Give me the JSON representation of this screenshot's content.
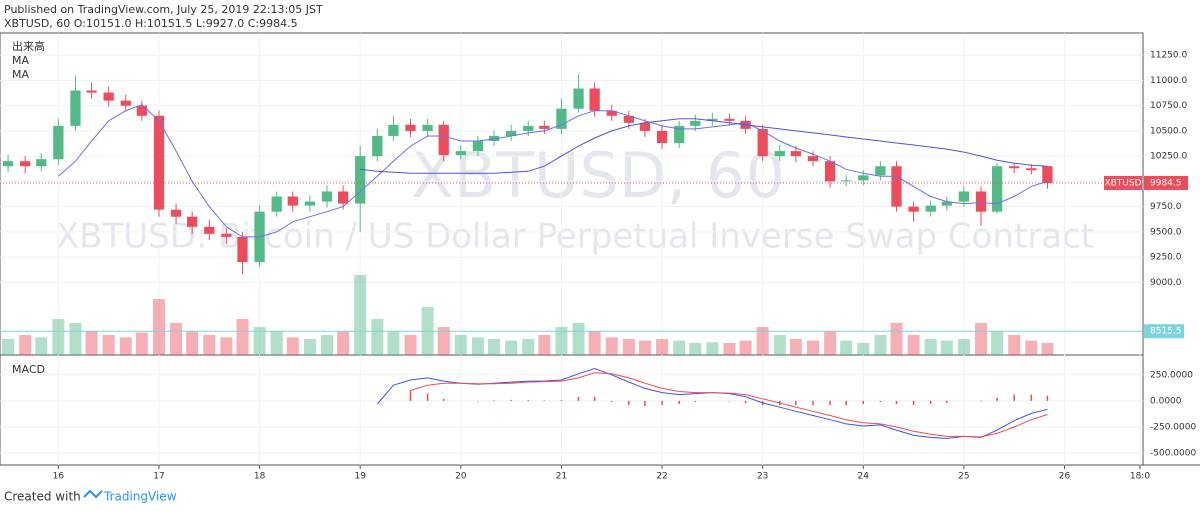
{
  "chart_data": {
    "type": "candlestick",
    "published": "Published on TradingView.com, July 25, 2019 22:13:05 JST",
    "header": "XBTUSD, 60 O:10151.0 H:10151.5 L:9927.0 C:9984.5",
    "watermark": "XBTUSD, 60",
    "watermark_desc": "XBTUSD: Bitcoin / US Dollar Perpetual Inverse Swap Contract",
    "legend": [
      "出来高",
      "MA",
      "MA"
    ],
    "symbol": "XBTUSD",
    "footer": "Created with",
    "brand": "TradingView",
    "up_color": "#53b987",
    "down_color": "#eb4d5c",
    "x": [
      15.5,
      15.67,
      15.83,
      16,
      16.17,
      16.33,
      16.5,
      16.67,
      16.83,
      17,
      17.17,
      17.33,
      17.5,
      17.67,
      17.83,
      18,
      18.17,
      18.33,
      18.5,
      18.67,
      18.83,
      19,
      19.17,
      19.33,
      19.5,
      19.67,
      19.83,
      20,
      20.17,
      20.33,
      20.5,
      20.67,
      20.83,
      21,
      21.17,
      21.33,
      21.5,
      21.67,
      21.83,
      22,
      22.17,
      22.33,
      22.5,
      22.67,
      22.83,
      23,
      23.17,
      23.33,
      23.5,
      23.67,
      23.83,
      24,
      24.17,
      24.33,
      24.5,
      24.67,
      24.83,
      25,
      25.17,
      25.33,
      25.5,
      25.67,
      25.83
    ],
    "open": [
      10150,
      10200,
      10150,
      10220,
      10550,
      10900,
      10880,
      10800,
      10750,
      10650,
      9720,
      9650,
      9550,
      9480,
      9450,
      9200,
      9700,
      9850,
      9760,
      9800,
      9900,
      9780,
      10250,
      10450,
      10560,
      10500,
      10560,
      10260,
      10300,
      10400,
      10450,
      10500,
      10550,
      10520,
      10720,
      10920,
      10700,
      10650,
      10580,
      10500,
      10380,
      10550,
      10600,
      10620,
      10600,
      10520,
      10250,
      10300,
      10250,
      10200,
      10000,
      10010,
      10060,
      10150,
      9750,
      9700,
      9760,
      9800,
      9900,
      9700,
      10150,
      10130,
      10151
    ],
    "high": [
      10260,
      10250,
      10280,
      10620,
      11050,
      10980,
      10940,
      10860,
      10800,
      10700,
      9780,
      9700,
      9620,
      9540,
      9500,
      9760,
      9900,
      9900,
      9860,
      9960,
      9960,
      10350,
      10520,
      10650,
      10620,
      10620,
      10600,
      10360,
      10450,
      10500,
      10560,
      10600,
      10600,
      10820,
      11060,
      10980,
      10760,
      10700,
      10620,
      10560,
      10600,
      10660,
      10680,
      10670,
      10650,
      10560,
      10360,
      10350,
      10300,
      10250,
      10060,
      10110,
      10200,
      10200,
      9800,
      9810,
      9850,
      9950,
      9950,
      10180,
      10180,
      10170,
      10151.5
    ],
    "low": [
      10090,
      10080,
      10100,
      10160,
      10500,
      10820,
      10740,
      10690,
      10600,
      9650,
      9580,
      9480,
      9420,
      9380,
      9080,
      9150,
      9650,
      9700,
      9700,
      9740,
      9720,
      9500,
      10200,
      10400,
      10440,
      10440,
      10200,
      10220,
      10250,
      10350,
      10400,
      10450,
      10470,
      10470,
      10680,
      10640,
      10600,
      10520,
      10440,
      10320,
      10330,
      10500,
      10550,
      10550,
      10470,
      10200,
      10200,
      10190,
      10150,
      9940,
      9950,
      9960,
      10010,
      9700,
      9600,
      9650,
      9710,
      9750,
      9560,
      9680,
      10080,
      10070,
      9927
    ],
    "close": [
      10200,
      10150,
      10220,
      10550,
      10900,
      10880,
      10800,
      10750,
      10650,
      9720,
      9650,
      9550,
      9480,
      9450,
      9200,
      9700,
      9850,
      9760,
      9800,
      9900,
      9780,
      10250,
      10450,
      10560,
      10500,
      10560,
      10260,
      10300,
      10400,
      10450,
      10500,
      10550,
      10520,
      10720,
      10920,
      10700,
      10650,
      10580,
      10500,
      10380,
      10550,
      10600,
      10620,
      10600,
      10520,
      10250,
      10300,
      10250,
      10200,
      10000,
      10010,
      10060,
      10150,
      9750,
      9700,
      9760,
      9800,
      9900,
      9700,
      10150,
      10130,
      10110,
      9984.5
    ],
    "volume": [
      20,
      25,
      22,
      45,
      40,
      30,
      25,
      22,
      28,
      70,
      40,
      30,
      25,
      22,
      45,
      35,
      30,
      22,
      20,
      25,
      30,
      100,
      45,
      30,
      25,
      60,
      35,
      25,
      22,
      20,
      18,
      20,
      25,
      35,
      40,
      30,
      22,
      20,
      18,
      20,
      18,
      15,
      16,
      15,
      18,
      35,
      25,
      20,
      18,
      30,
      18,
      15,
      25,
      40,
      25,
      20,
      18,
      20,
      40,
      30,
      25,
      18,
      15
    ],
    "vlim": [
      0,
      100
    ],
    "ma_series": [
      {
        "color": "#6f6fe8",
        "values": [
          null,
          null,
          null,
          10050,
          10200,
          10400,
          10600,
          10700,
          10760,
          10600,
          10300,
          10000,
          9750,
          9550,
          9450,
          9450,
          9500,
          9600,
          9650,
          9700,
          9750,
          9900,
          10050,
          10200,
          10350,
          10450,
          10450,
          10400,
          10400,
          10420,
          10450,
          10480,
          10500,
          10560,
          10650,
          10700,
          10700,
          10650,
          10600,
          10550,
          10520,
          10520,
          10540,
          10560,
          10580,
          10500,
          10400,
          10330,
          10270,
          10200,
          10120,
          10080,
          10050,
          10050,
          9950,
          9850,
          9800,
          9780,
          9790,
          9780,
          9850,
          9950,
          10000
        ]
      },
      {
        "color": "#5252d9",
        "values": [
          null,
          null,
          null,
          null,
          null,
          null,
          null,
          null,
          null,
          null,
          null,
          null,
          null,
          null,
          null,
          null,
          null,
          null,
          null,
          null,
          null,
          10120,
          10100,
          10090,
          10080,
          10080,
          10080,
          10080,
          10080,
          10080,
          10090,
          10100,
          10150,
          10250,
          10350,
          10430,
          10500,
          10550,
          10580,
          10600,
          10620,
          10620,
          10600,
          10580,
          10560,
          10540,
          10520,
          10500,
          10480,
          10460,
          10440,
          10420,
          10400,
          10380,
          10360,
          10340,
          10320,
          10290,
          10250,
          10210,
          10180,
          10160,
          10150
        ]
      }
    ],
    "hline": 8515.5,
    "hline_color": "#7fd3dc",
    "ylim": [
      8280,
      11470
    ],
    "yticks": [
      {
        "value": 9000,
        "label": "9000.0"
      },
      {
        "value": 9250,
        "label": "9250.0"
      },
      {
        "value": 9500,
        "label": "9500.0"
      },
      {
        "value": 9750,
        "label": "9750.0"
      },
      {
        "value": 10000,
        "label": "10000.0"
      },
      {
        "value": 10250,
        "label": "10250.0"
      },
      {
        "value": 10500,
        "label": "10500.0"
      },
      {
        "value": 10750,
        "label": "10750.0"
      },
      {
        "value": 11000,
        "label": "11000.0"
      },
      {
        "value": 11250,
        "label": "11250.0"
      }
    ],
    "xlim": [
      15.42,
      26.78
    ],
    "xticks": [
      16,
      17,
      18,
      19,
      20,
      21,
      22,
      23,
      24,
      25,
      26,
      {
        "value": 26.75,
        "label": "18:0"
      }
    ],
    "macd": {
      "title": "MACD",
      "ylim": [
        -614,
        411
      ],
      "yticks": [
        {
          "value": 250,
          "label": "250.0000"
        },
        {
          "value": 0,
          "label": "0.0000"
        },
        {
          "value": -250,
          "label": "-250.0000"
        },
        {
          "value": -500,
          "label": "-500.0000"
        }
      ],
      "macd_color": "#3f51f0",
      "signal_color": "#f04b4b",
      "hist_color": "#f04b4b",
      "macd": [
        null,
        null,
        null,
        null,
        null,
        null,
        null,
        null,
        null,
        null,
        null,
        null,
        null,
        null,
        null,
        null,
        null,
        null,
        null,
        null,
        null,
        null,
        -30,
        150,
        200,
        220,
        190,
        170,
        160,
        170,
        180,
        190,
        190,
        200,
        260,
        310,
        250,
        180,
        120,
        80,
        60,
        70,
        80,
        70,
        40,
        -20,
        -60,
        -100,
        -140,
        -180,
        -220,
        -240,
        -230,
        -280,
        -330,
        -350,
        -360,
        -340,
        -350,
        -280,
        -190,
        -120,
        -80
      ],
      "signal": [
        null,
        null,
        null,
        null,
        null,
        null,
        null,
        null,
        null,
        null,
        null,
        null,
        null,
        null,
        null,
        null,
        null,
        null,
        null,
        null,
        null,
        null,
        null,
        null,
        100,
        150,
        170,
        170,
        165,
        165,
        170,
        180,
        185,
        190,
        220,
        270,
        260,
        220,
        170,
        120,
        90,
        80,
        80,
        75,
        60,
        20,
        -20,
        -60,
        -100,
        -140,
        -180,
        -210,
        -220,
        -250,
        -290,
        -320,
        -340,
        -340,
        -345,
        -310,
        -250,
        -180,
        -130
      ],
      "hist": [
        null,
        null,
        null,
        null,
        null,
        null,
        null,
        null,
        null,
        null,
        null,
        null,
        null,
        null,
        null,
        null,
        null,
        null,
        null,
        null,
        null,
        null,
        null,
        null,
        100,
        70,
        20,
        0,
        -5,
        5,
        10,
        10,
        5,
        10,
        40,
        40,
        -10,
        -40,
        -50,
        -40,
        -30,
        -10,
        0,
        -5,
        -20,
        -40,
        -40,
        -40,
        -40,
        -40,
        -40,
        -30,
        -10,
        -30,
        -40,
        -30,
        -20,
        0,
        -5,
        30,
        60,
        60,
        50
      ]
    }
  }
}
